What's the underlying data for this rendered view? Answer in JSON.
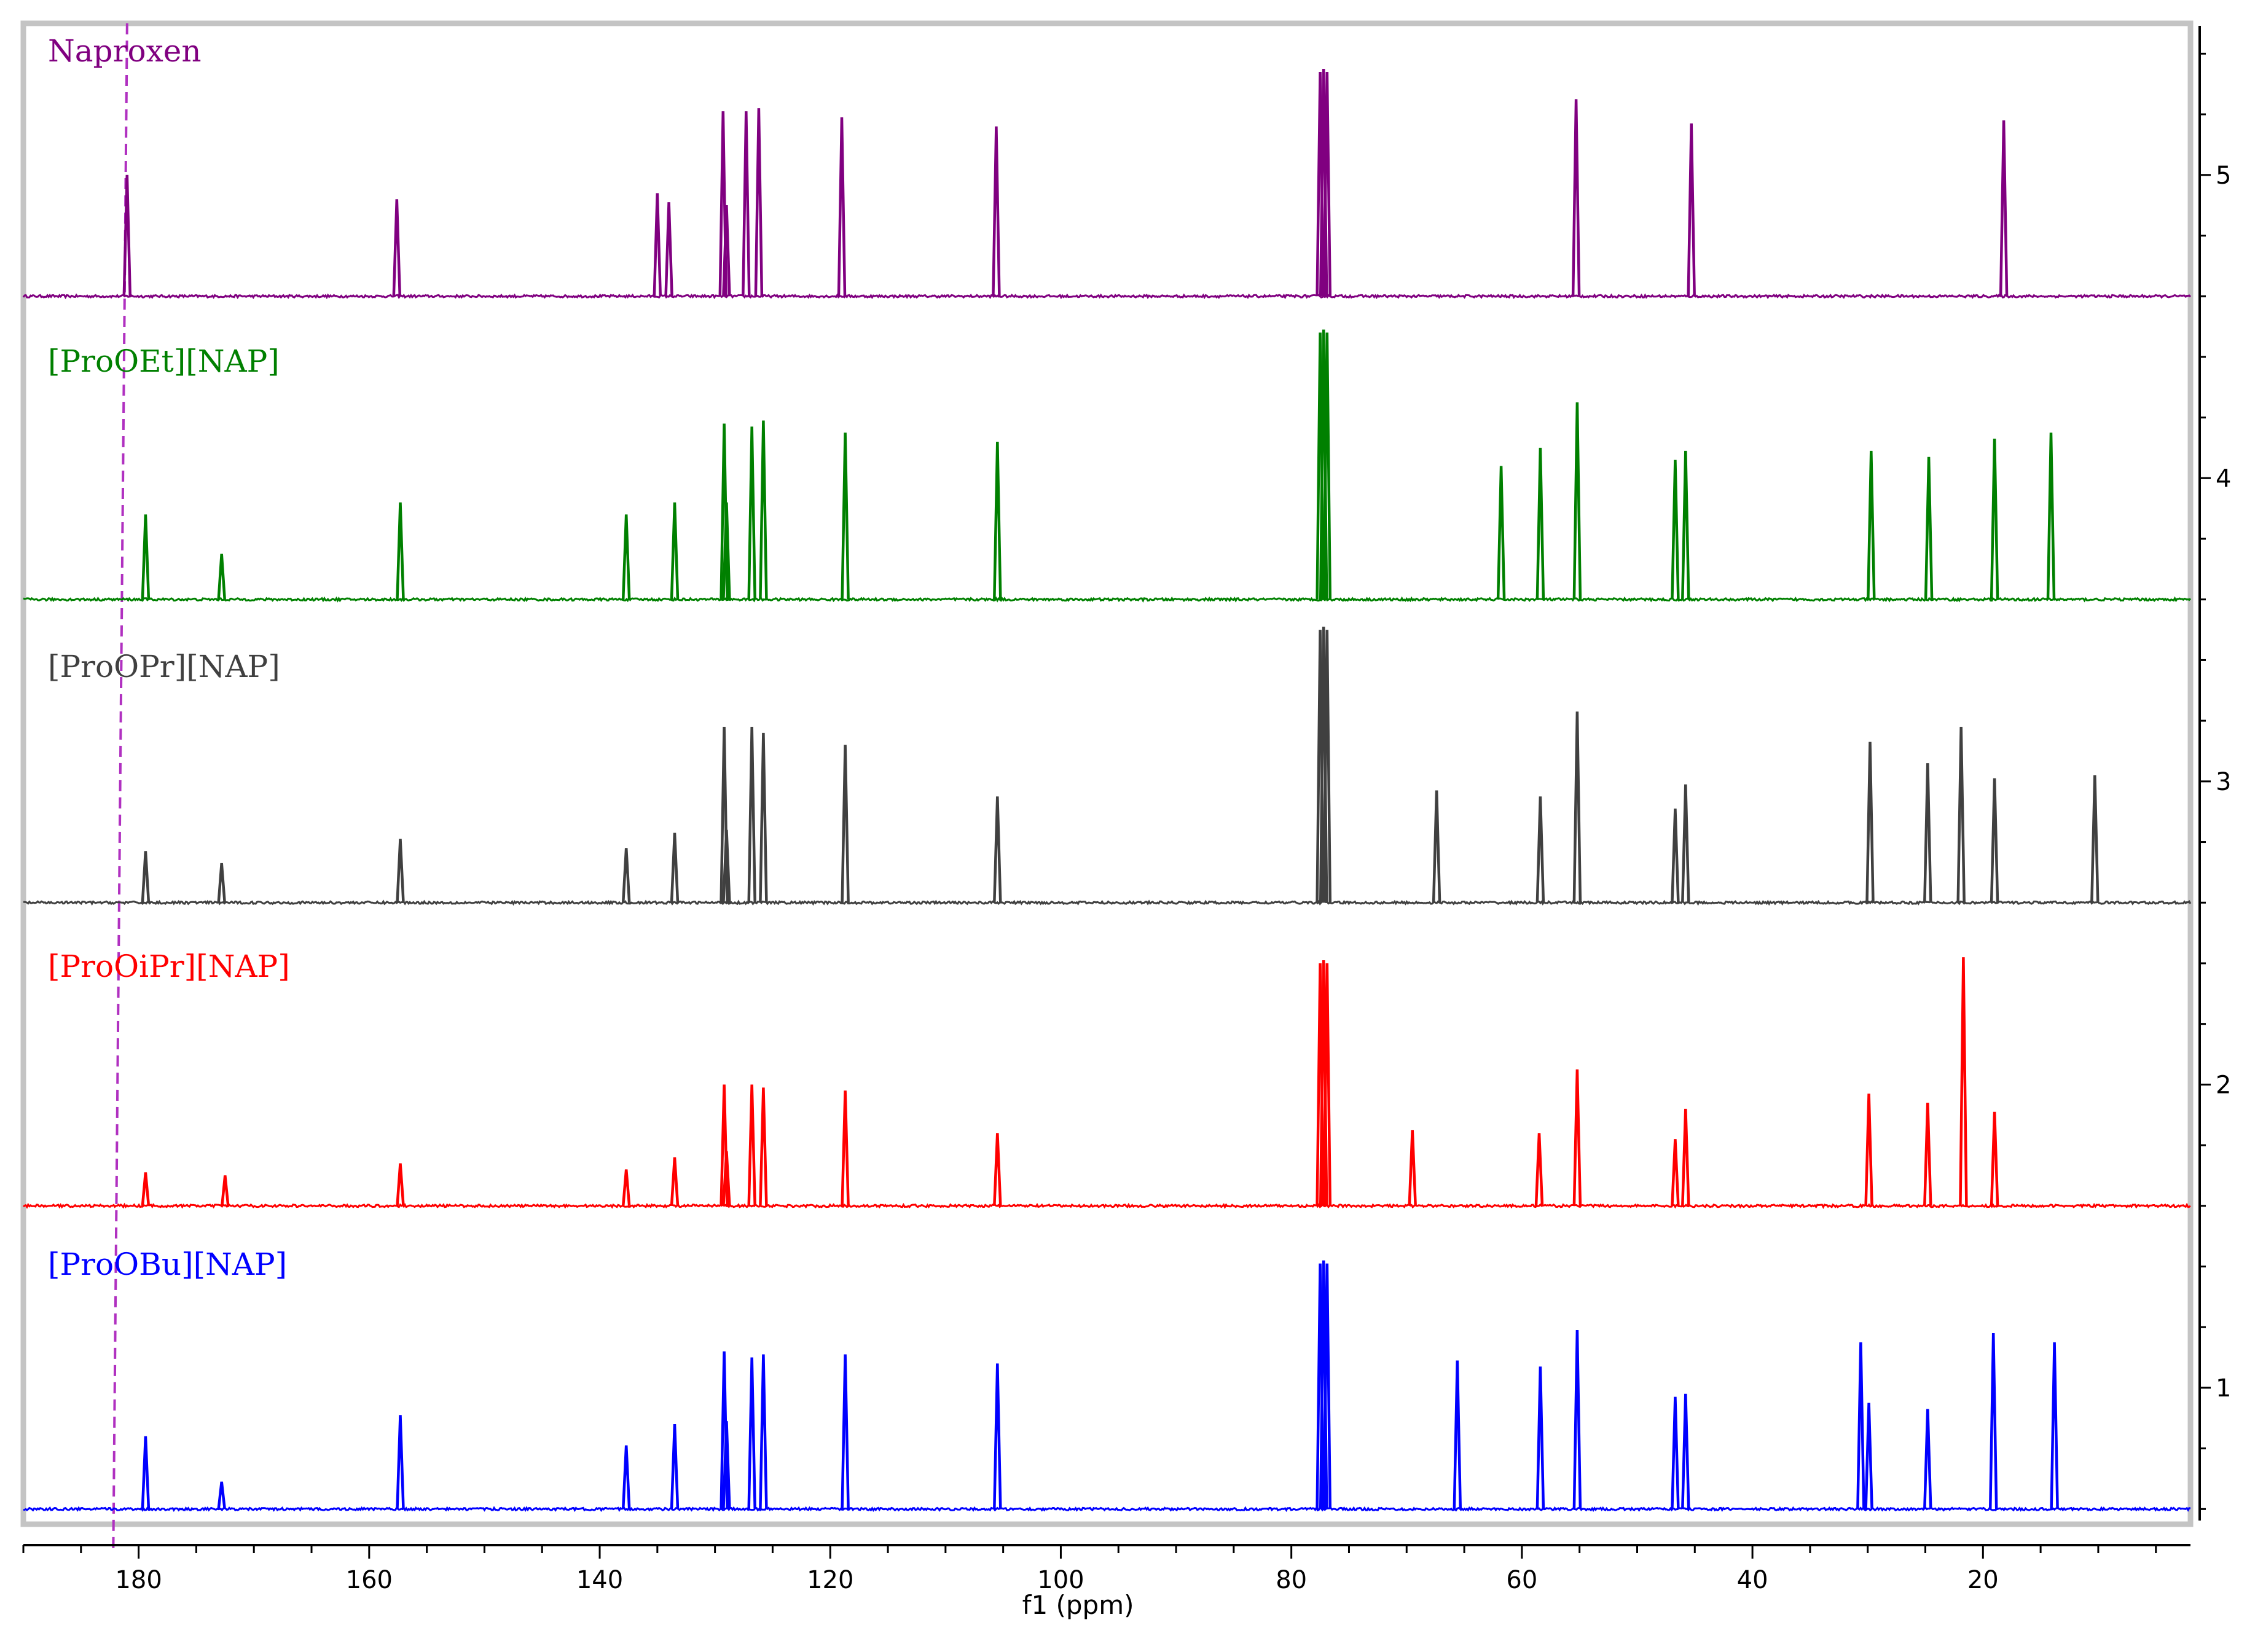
{
  "chart_data": {
    "type": "line",
    "title": "",
    "xlabel": "f1 (ppm)",
    "ylabel": "",
    "xlim": [
      190,
      2
    ],
    "ylim": [
      0.55,
      5.5
    ],
    "x_ticks": [
      180,
      160,
      140,
      120,
      100,
      80,
      60,
      40,
      20
    ],
    "y_ticks": [
      1,
      2,
      3,
      4,
      5
    ],
    "grid": false,
    "legend": "none",
    "reference_line": {
      "ppm_top": 181.0,
      "ppm_bottom": 182.2,
      "color": "#b030c0",
      "style": "dashed"
    },
    "series": [
      {
        "name": "Naproxen",
        "color": "#800080",
        "baseline": 4.6,
        "peaks": [
          {
            "ppm": 181.0,
            "height": 0.4
          },
          {
            "ppm": 157.6,
            "height": 0.32
          },
          {
            "ppm": 135.0,
            "height": 0.34
          },
          {
            "ppm": 134.0,
            "height": 0.31
          },
          {
            "ppm": 129.3,
            "height": 0.61
          },
          {
            "ppm": 129.0,
            "height": 0.3
          },
          {
            "ppm": 127.3,
            "height": 0.61
          },
          {
            "ppm": 126.2,
            "height": 0.62
          },
          {
            "ppm": 119.0,
            "height": 0.59
          },
          {
            "ppm": 105.6,
            "height": 0.56
          },
          {
            "ppm": 77.5,
            "height": 0.74
          },
          {
            "ppm": 77.2,
            "height": 0.75
          },
          {
            "ppm": 76.9,
            "height": 0.74
          },
          {
            "ppm": 55.3,
            "height": 0.65
          },
          {
            "ppm": 45.3,
            "height": 0.57
          },
          {
            "ppm": 18.2,
            "height": 0.58
          }
        ]
      },
      {
        "name": "[ProOEt][NAP]",
        "color": "#008000",
        "baseline": 3.6,
        "peaks": [
          {
            "ppm": 179.4,
            "height": 0.28
          },
          {
            "ppm": 172.8,
            "height": 0.15
          },
          {
            "ppm": 157.3,
            "height": 0.32
          },
          {
            "ppm": 137.7,
            "height": 0.28
          },
          {
            "ppm": 133.5,
            "height": 0.32
          },
          {
            "ppm": 129.2,
            "height": 0.58
          },
          {
            "ppm": 129.0,
            "height": 0.32
          },
          {
            "ppm": 126.8,
            "height": 0.57
          },
          {
            "ppm": 125.8,
            "height": 0.59
          },
          {
            "ppm": 118.7,
            "height": 0.55
          },
          {
            "ppm": 105.5,
            "height": 0.52
          },
          {
            "ppm": 77.5,
            "height": 0.88
          },
          {
            "ppm": 77.2,
            "height": 0.89
          },
          {
            "ppm": 76.9,
            "height": 0.88
          },
          {
            "ppm": 61.8,
            "height": 0.44
          },
          {
            "ppm": 58.4,
            "height": 0.5
          },
          {
            "ppm": 55.2,
            "height": 0.65
          },
          {
            "ppm": 46.7,
            "height": 0.46
          },
          {
            "ppm": 45.8,
            "height": 0.49
          },
          {
            "ppm": 29.7,
            "height": 0.49
          },
          {
            "ppm": 24.7,
            "height": 0.47
          },
          {
            "ppm": 19.0,
            "height": 0.53
          },
          {
            "ppm": 14.1,
            "height": 0.55
          }
        ]
      },
      {
        "name": "[ProOPr][NAP]",
        "color": "#404040",
        "baseline": 2.6,
        "peaks": [
          {
            "ppm": 179.4,
            "height": 0.17
          },
          {
            "ppm": 172.8,
            "height": 0.13
          },
          {
            "ppm": 157.3,
            "height": 0.21
          },
          {
            "ppm": 137.7,
            "height": 0.18
          },
          {
            "ppm": 133.5,
            "height": 0.23
          },
          {
            "ppm": 129.2,
            "height": 0.58
          },
          {
            "ppm": 129.0,
            "height": 0.24
          },
          {
            "ppm": 126.8,
            "height": 0.58
          },
          {
            "ppm": 125.8,
            "height": 0.56
          },
          {
            "ppm": 118.7,
            "height": 0.52
          },
          {
            "ppm": 105.5,
            "height": 0.35
          },
          {
            "ppm": 77.5,
            "height": 0.9
          },
          {
            "ppm": 77.2,
            "height": 0.91
          },
          {
            "ppm": 76.9,
            "height": 0.9
          },
          {
            "ppm": 67.4,
            "height": 0.37
          },
          {
            "ppm": 58.4,
            "height": 0.35
          },
          {
            "ppm": 55.2,
            "height": 0.63
          },
          {
            "ppm": 46.7,
            "height": 0.31
          },
          {
            "ppm": 45.8,
            "height": 0.39
          },
          {
            "ppm": 29.8,
            "height": 0.53
          },
          {
            "ppm": 24.8,
            "height": 0.46
          },
          {
            "ppm": 21.9,
            "height": 0.58
          },
          {
            "ppm": 19.0,
            "height": 0.41
          },
          {
            "ppm": 10.3,
            "height": 0.42
          }
        ]
      },
      {
        "name": "[ProOiPr][NAP]",
        "color": "#ff0000",
        "baseline": 1.6,
        "peaks": [
          {
            "ppm": 179.4,
            "height": 0.11
          },
          {
            "ppm": 172.5,
            "height": 0.1
          },
          {
            "ppm": 157.3,
            "height": 0.14
          },
          {
            "ppm": 137.7,
            "height": 0.12
          },
          {
            "ppm": 133.5,
            "height": 0.16
          },
          {
            "ppm": 129.2,
            "height": 0.4
          },
          {
            "ppm": 129.0,
            "height": 0.18
          },
          {
            "ppm": 126.8,
            "height": 0.4
          },
          {
            "ppm": 125.8,
            "height": 0.39
          },
          {
            "ppm": 118.7,
            "height": 0.38
          },
          {
            "ppm": 105.5,
            "height": 0.24
          },
          {
            "ppm": 77.5,
            "height": 0.8
          },
          {
            "ppm": 77.2,
            "height": 0.81
          },
          {
            "ppm": 76.9,
            "height": 0.8
          },
          {
            "ppm": 69.5,
            "height": 0.25
          },
          {
            "ppm": 58.5,
            "height": 0.24
          },
          {
            "ppm": 55.2,
            "height": 0.45
          },
          {
            "ppm": 46.7,
            "height": 0.22
          },
          {
            "ppm": 45.8,
            "height": 0.32
          },
          {
            "ppm": 29.9,
            "height": 0.37
          },
          {
            "ppm": 24.8,
            "height": 0.34
          },
          {
            "ppm": 21.7,
            "height": 0.82
          },
          {
            "ppm": 19.0,
            "height": 0.31
          }
        ]
      },
      {
        "name": "[ProOBu][NAP]",
        "color": "#0000ff",
        "baseline": 0.6,
        "peaks": [
          {
            "ppm": 179.4,
            "height": 0.24
          },
          {
            "ppm": 172.8,
            "height": 0.09
          },
          {
            "ppm": 157.3,
            "height": 0.31
          },
          {
            "ppm": 137.7,
            "height": 0.21
          },
          {
            "ppm": 133.5,
            "height": 0.28
          },
          {
            "ppm": 129.2,
            "height": 0.52
          },
          {
            "ppm": 129.0,
            "height": 0.29
          },
          {
            "ppm": 126.8,
            "height": 0.5
          },
          {
            "ppm": 125.8,
            "height": 0.51
          },
          {
            "ppm": 118.7,
            "height": 0.51
          },
          {
            "ppm": 105.5,
            "height": 0.48
          },
          {
            "ppm": 77.5,
            "height": 0.81
          },
          {
            "ppm": 77.2,
            "height": 0.82
          },
          {
            "ppm": 76.9,
            "height": 0.81
          },
          {
            "ppm": 65.6,
            "height": 0.49
          },
          {
            "ppm": 58.4,
            "height": 0.47
          },
          {
            "ppm": 55.2,
            "height": 0.59
          },
          {
            "ppm": 46.7,
            "height": 0.37
          },
          {
            "ppm": 45.8,
            "height": 0.38
          },
          {
            "ppm": 30.6,
            "height": 0.55
          },
          {
            "ppm": 29.9,
            "height": 0.35
          },
          {
            "ppm": 24.8,
            "height": 0.33
          },
          {
            "ppm": 19.1,
            "height": 0.58
          },
          {
            "ppm": 13.8,
            "height": 0.55
          }
        ]
      }
    ]
  }
}
